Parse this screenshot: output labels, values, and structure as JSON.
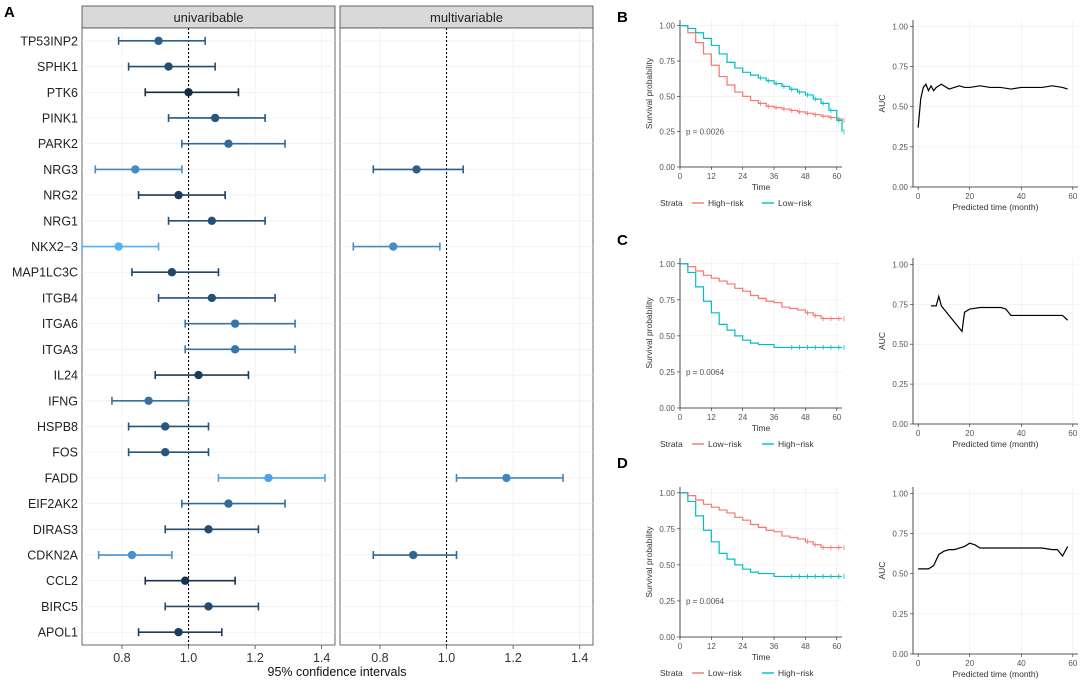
{
  "panels": {
    "A": {
      "letter": "A",
      "xlabel": "95% confidence intervals",
      "facets": [
        {
          "title": "univaribable"
        },
        {
          "title": "multivariable"
        }
      ]
    },
    "B": {
      "letter": "B"
    },
    "C": {
      "letter": "C"
    },
    "D": {
      "letter": "D"
    }
  },
  "colors": {
    "dark": "#132b43",
    "light": "#56b1f7",
    "km_red": "#f8766d",
    "km_teal": "#00bfc4",
    "strip": "#d9d9d9"
  },
  "chart_data": [
    {
      "id": "A",
      "type": "forest",
      "title": "",
      "xlabel": "95% confidence intervals",
      "facets": [
        "univaribable",
        "multivariable"
      ],
      "xlim": [
        0.68,
        1.44
      ],
      "xticks": [
        0.8,
        1.0,
        1.2,
        1.4
      ],
      "xtick_labels": [
        "0.8",
        "1.0",
        "1.2",
        "1.4"
      ],
      "reference": 1.0,
      "genes": [
        "TP53INP2",
        "SPHK1",
        "PTK6",
        "PINK1",
        "PARK2",
        "NRG3",
        "NRG2",
        "NRG1",
        "NKX2−3",
        "MAP1LC3C",
        "ITGB4",
        "ITGA6",
        "ITGA3",
        "IL24",
        "IFNG",
        "HSPB8",
        "FOS",
        "FADD",
        "EIF2AK2",
        "DIRAS3",
        "CDKN2A",
        "CCL2",
        "BIRC5",
        "APOL1"
      ],
      "univariable": [
        {
          "gene": "TP53INP2",
          "hr": 0.91,
          "lo": 0.79,
          "hi": 1.05
        },
        {
          "gene": "SPHK1",
          "hr": 0.94,
          "lo": 0.82,
          "hi": 1.08
        },
        {
          "gene": "PTK6",
          "hr": 1.0,
          "lo": 0.87,
          "hi": 1.15
        },
        {
          "gene": "PINK1",
          "hr": 1.08,
          "lo": 0.94,
          "hi": 1.23
        },
        {
          "gene": "PARK2",
          "hr": 1.12,
          "lo": 0.98,
          "hi": 1.29
        },
        {
          "gene": "NRG3",
          "hr": 0.84,
          "lo": 0.72,
          "hi": 0.98
        },
        {
          "gene": "NRG2",
          "hr": 0.97,
          "lo": 0.85,
          "hi": 1.11
        },
        {
          "gene": "NRG1",
          "hr": 1.07,
          "lo": 0.94,
          "hi": 1.23
        },
        {
          "gene": "NKX2−3",
          "hr": 0.79,
          "lo": 0.68,
          "hi": 0.91
        },
        {
          "gene": "MAP1LC3C",
          "hr": 0.95,
          "lo": 0.83,
          "hi": 1.09
        },
        {
          "gene": "ITGB4",
          "hr": 1.07,
          "lo": 0.91,
          "hi": 1.26
        },
        {
          "gene": "ITGA6",
          "hr": 1.14,
          "lo": 0.99,
          "hi": 1.32
        },
        {
          "gene": "ITGA3",
          "hr": 1.14,
          "lo": 0.99,
          "hi": 1.32
        },
        {
          "gene": "IL24",
          "hr": 1.03,
          "lo": 0.9,
          "hi": 1.18
        },
        {
          "gene": "IFNG",
          "hr": 0.88,
          "lo": 0.77,
          "hi": 1.0
        },
        {
          "gene": "HSPB8",
          "hr": 0.93,
          "lo": 0.82,
          "hi": 1.06
        },
        {
          "gene": "FOS",
          "hr": 0.93,
          "lo": 0.82,
          "hi": 1.06
        },
        {
          "gene": "FADD",
          "hr": 1.24,
          "lo": 1.09,
          "hi": 1.41
        },
        {
          "gene": "EIF2AK2",
          "hr": 1.12,
          "lo": 0.98,
          "hi": 1.29
        },
        {
          "gene": "DIRAS3",
          "hr": 1.06,
          "lo": 0.93,
          "hi": 1.21
        },
        {
          "gene": "CDKN2A",
          "hr": 0.83,
          "lo": 0.73,
          "hi": 0.95
        },
        {
          "gene": "CCL2",
          "hr": 0.99,
          "lo": 0.87,
          "hi": 1.14
        },
        {
          "gene": "BIRC5",
          "hr": 1.06,
          "lo": 0.93,
          "hi": 1.21
        },
        {
          "gene": "APOL1",
          "hr": 0.97,
          "lo": 0.85,
          "hi": 1.1
        }
      ],
      "multivariable": [
        {
          "gene": "NRG3",
          "hr": 0.91,
          "lo": 0.78,
          "hi": 1.05
        },
        {
          "gene": "NKX2−3",
          "hr": 0.84,
          "lo": 0.72,
          "hi": 0.98
        },
        {
          "gene": "FADD",
          "hr": 1.18,
          "lo": 1.03,
          "hi": 1.35
        },
        {
          "gene": "CDKN2A",
          "hr": 0.9,
          "lo": 0.78,
          "hi": 1.03
        }
      ]
    },
    {
      "id": "B-km",
      "type": "line",
      "title": "",
      "xlabel": "Time",
      "ylabel": "Survival probability",
      "xlim": [
        0,
        62
      ],
      "ylim": [
        0,
        1.04
      ],
      "xticks": [
        0,
        12,
        24,
        36,
        48,
        60
      ],
      "xtick_labels": [
        "0",
        "12",
        "24",
        "36",
        "48",
        "60"
      ],
      "yticks": [
        0,
        0.25,
        0.5,
        0.75,
        1
      ],
      "ytick_labels": [
        "0.00",
        "0.25",
        "0.50",
        "0.75",
        "1.00"
      ],
      "pvalue": "p = 0.0026",
      "legend_title": "Strata",
      "legend_position": "bottom",
      "series": [
        {
          "name": "High−risk",
          "color_key": "km_red",
          "x": [
            0,
            3,
            6,
            9,
            12,
            15,
            18,
            21,
            24,
            27,
            30,
            33,
            36,
            39,
            42,
            45,
            48,
            51,
            54,
            57,
            60,
            62
          ],
          "values": [
            1.0,
            0.95,
            0.88,
            0.8,
            0.72,
            0.64,
            0.58,
            0.53,
            0.5,
            0.47,
            0.45,
            0.43,
            0.42,
            0.41,
            0.4,
            0.39,
            0.38,
            0.37,
            0.36,
            0.35,
            0.34,
            0.33
          ],
          "censor_from": 30
        },
        {
          "name": "Low−risk",
          "color_key": "km_teal",
          "x": [
            0,
            3,
            6,
            9,
            12,
            15,
            18,
            21,
            24,
            27,
            30,
            33,
            36,
            39,
            42,
            45,
            48,
            51,
            54,
            57,
            60,
            62
          ],
          "values": [
            1.0,
            0.98,
            0.95,
            0.91,
            0.86,
            0.8,
            0.74,
            0.7,
            0.67,
            0.65,
            0.63,
            0.61,
            0.59,
            0.57,
            0.55,
            0.53,
            0.51,
            0.48,
            0.45,
            0.4,
            0.33,
            0.25
          ],
          "censor_from": 30
        }
      ]
    },
    {
      "id": "B-auc",
      "type": "line",
      "title": "",
      "xlabel": "Predicted time (month)",
      "ylabel": "AUC",
      "xlim": [
        -2,
        62
      ],
      "ylim": [
        0,
        1.04
      ],
      "xticks": [
        0,
        20,
        40,
        60
      ],
      "xtick_labels": [
        "0",
        "20",
        "40",
        "60"
      ],
      "yticks": [
        0,
        0.25,
        0.5,
        0.75,
        1
      ],
      "ytick_labels": [
        "0.00",
        "0.25",
        "0.50",
        "0.75",
        "1.00"
      ],
      "series": [
        {
          "name": "AUC",
          "x": [
            0,
            1,
            2,
            3,
            4,
            5,
            6,
            7,
            8,
            9,
            10,
            12,
            14,
            16,
            18,
            20,
            24,
            28,
            32,
            36,
            40,
            44,
            48,
            52,
            56,
            58
          ],
          "values": [
            0.37,
            0.55,
            0.62,
            0.64,
            0.6,
            0.63,
            0.6,
            0.62,
            0.63,
            0.64,
            0.63,
            0.61,
            0.62,
            0.63,
            0.62,
            0.62,
            0.63,
            0.62,
            0.62,
            0.61,
            0.62,
            0.62,
            0.62,
            0.63,
            0.62,
            0.61
          ]
        }
      ]
    },
    {
      "id": "C-km",
      "type": "line",
      "title": "",
      "xlabel": "Time",
      "ylabel": "Survival probability",
      "xlim": [
        0,
        62
      ],
      "ylim": [
        0,
        1.04
      ],
      "xticks": [
        0,
        12,
        24,
        36,
        48,
        60
      ],
      "xtick_labels": [
        "0",
        "12",
        "24",
        "36",
        "48",
        "60"
      ],
      "yticks": [
        0,
        0.25,
        0.5,
        0.75,
        1
      ],
      "ytick_labels": [
        "0.00",
        "0.25",
        "0.50",
        "0.75",
        "1.00"
      ],
      "pvalue": "p = 0.0064",
      "legend_title": "Strata",
      "legend_position": "bottom",
      "series": [
        {
          "name": "Low−risk",
          "color_key": "km_red",
          "x": [
            0,
            3,
            6,
            9,
            12,
            15,
            18,
            21,
            24,
            27,
            30,
            33,
            36,
            39,
            42,
            45,
            48,
            51,
            54,
            57,
            60,
            62
          ],
          "values": [
            1.0,
            0.98,
            0.95,
            0.92,
            0.9,
            0.88,
            0.86,
            0.83,
            0.81,
            0.78,
            0.76,
            0.74,
            0.73,
            0.7,
            0.69,
            0.68,
            0.66,
            0.64,
            0.62,
            0.62,
            0.62,
            0.62
          ],
          "censor_from": 48
        },
        {
          "name": "High−risk",
          "color_key": "km_teal",
          "x": [
            0,
            3,
            6,
            9,
            12,
            15,
            18,
            21,
            24,
            27,
            30,
            33,
            36,
            39,
            42,
            45,
            48,
            51,
            54,
            57,
            60,
            62
          ],
          "values": [
            1.0,
            0.94,
            0.84,
            0.74,
            0.66,
            0.58,
            0.54,
            0.5,
            0.47,
            0.45,
            0.44,
            0.44,
            0.42,
            0.42,
            0.42,
            0.42,
            0.42,
            0.42,
            0.42,
            0.42,
            0.42,
            0.42
          ],
          "censor_from": 40
        }
      ]
    },
    {
      "id": "C-auc",
      "type": "line",
      "title": "",
      "xlabel": "Predicted time (month)",
      "ylabel": "AUC",
      "xlim": [
        -2,
        62
      ],
      "ylim": [
        0,
        1.04
      ],
      "xticks": [
        0,
        20,
        40,
        60
      ],
      "xtick_labels": [
        "0",
        "20",
        "40",
        "60"
      ],
      "yticks": [
        0,
        0.25,
        0.5,
        0.75,
        1
      ],
      "ytick_labels": [
        "0.00",
        "0.25",
        "0.50",
        "0.75",
        "1.00"
      ],
      "series": [
        {
          "name": "AUC",
          "x": [
            5,
            7,
            8,
            9,
            10,
            12,
            14,
            16,
            17,
            18,
            20,
            24,
            28,
            32,
            34,
            36,
            40,
            44,
            48,
            52,
            56,
            58
          ],
          "values": [
            0.74,
            0.74,
            0.8,
            0.74,
            0.72,
            0.68,
            0.64,
            0.6,
            0.58,
            0.7,
            0.72,
            0.73,
            0.73,
            0.73,
            0.72,
            0.68,
            0.68,
            0.68,
            0.68,
            0.68,
            0.68,
            0.65
          ]
        }
      ]
    },
    {
      "id": "D-km",
      "type": "line",
      "title": "",
      "xlabel": "Time",
      "ylabel": "Survival probability",
      "xlim": [
        0,
        62
      ],
      "ylim": [
        0,
        1.04
      ],
      "xticks": [
        0,
        12,
        24,
        36,
        48,
        60
      ],
      "xtick_labels": [
        "0",
        "12",
        "24",
        "36",
        "48",
        "60"
      ],
      "yticks": [
        0,
        0.25,
        0.5,
        0.75,
        1
      ],
      "ytick_labels": [
        "0.00",
        "0.25",
        "0.50",
        "0.75",
        "1.00"
      ],
      "pvalue": "p = 0.0064",
      "legend_title": "Strata",
      "legend_position": "bottom",
      "series": [
        {
          "name": "Low−risk",
          "color_key": "km_red",
          "x": [
            0,
            3,
            6,
            9,
            12,
            15,
            18,
            21,
            24,
            27,
            30,
            33,
            36,
            39,
            42,
            45,
            48,
            51,
            54,
            57,
            60,
            62
          ],
          "values": [
            1.0,
            0.98,
            0.95,
            0.92,
            0.9,
            0.88,
            0.86,
            0.83,
            0.81,
            0.78,
            0.76,
            0.74,
            0.73,
            0.7,
            0.69,
            0.68,
            0.66,
            0.64,
            0.62,
            0.62,
            0.62,
            0.62
          ],
          "censor_from": 48
        },
        {
          "name": "High−risk",
          "color_key": "km_teal",
          "x": [
            0,
            3,
            6,
            9,
            12,
            15,
            18,
            21,
            24,
            27,
            30,
            33,
            36,
            39,
            42,
            45,
            48,
            51,
            54,
            57,
            60,
            62
          ],
          "values": [
            1.0,
            0.94,
            0.84,
            0.74,
            0.66,
            0.58,
            0.54,
            0.5,
            0.47,
            0.45,
            0.44,
            0.44,
            0.42,
            0.42,
            0.42,
            0.42,
            0.42,
            0.42,
            0.42,
            0.42,
            0.42,
            0.42
          ],
          "censor_from": 40
        }
      ]
    },
    {
      "id": "D-auc",
      "type": "line",
      "title": "",
      "xlabel": "Predicted time (month)",
      "ylabel": "AUC",
      "xlim": [
        -2,
        62
      ],
      "ylim": [
        0,
        1.04
      ],
      "xticks": [
        0,
        20,
        40,
        60
      ],
      "xtick_labels": [
        "0",
        "20",
        "40",
        "60"
      ],
      "yticks": [
        0,
        0.25,
        0.5,
        0.75,
        1
      ],
      "ytick_labels": [
        "0.00",
        "0.25",
        "0.50",
        "0.75",
        "1.00"
      ],
      "series": [
        {
          "name": "AUC",
          "x": [
            0,
            4,
            6,
            8,
            10,
            12,
            14,
            16,
            18,
            20,
            22,
            24,
            28,
            32,
            36,
            40,
            44,
            48,
            52,
            54,
            56,
            58
          ],
          "values": [
            0.53,
            0.53,
            0.55,
            0.62,
            0.64,
            0.65,
            0.65,
            0.66,
            0.67,
            0.69,
            0.68,
            0.66,
            0.66,
            0.66,
            0.66,
            0.66,
            0.66,
            0.66,
            0.65,
            0.65,
            0.61,
            0.67
          ]
        }
      ]
    }
  ]
}
